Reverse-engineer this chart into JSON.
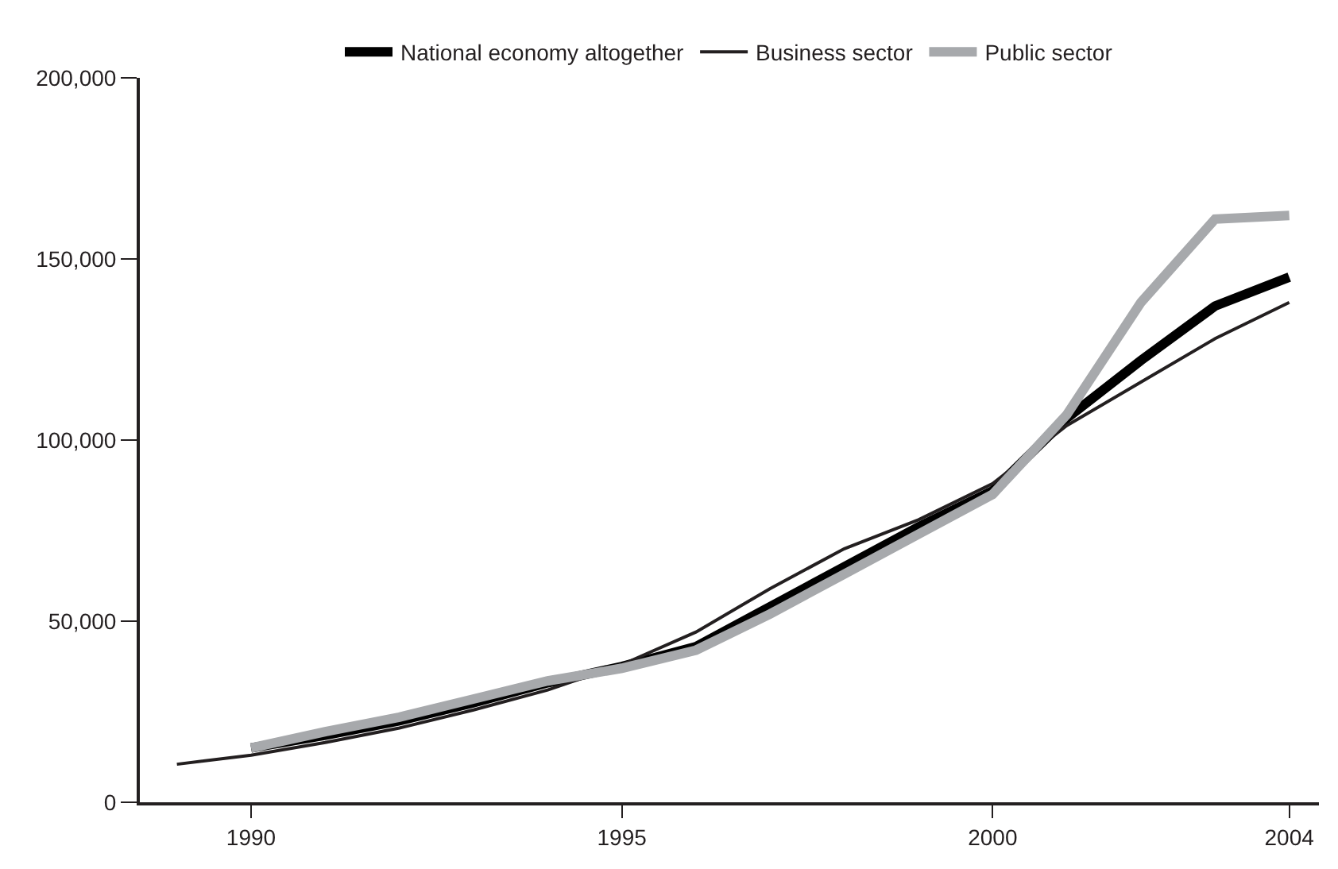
{
  "chart_data": {
    "type": "line",
    "x": [
      1989,
      1990,
      1991,
      1992,
      1993,
      1994,
      1995,
      1996,
      1997,
      1998,
      1999,
      2000,
      2001,
      2002,
      2003,
      2004
    ],
    "series": [
      {
        "name": "National economy altogether",
        "color": "#000000",
        "values": [
          null,
          15000,
          18500,
          22500,
          27500,
          33000,
          37500,
          43000,
          54000,
          65000,
          76000,
          86000,
          106000,
          122000,
          137000,
          145000
        ]
      },
      {
        "name": "Business sector",
        "color": "#231f20",
        "values": [
          10500,
          13000,
          16500,
          20500,
          25500,
          31000,
          38000,
          47000,
          59000,
          70000,
          78000,
          88000,
          104000,
          116000,
          128000,
          138000
        ]
      },
      {
        "name": "Public sector",
        "color": "#a7a9ac",
        "values": [
          null,
          15000,
          19500,
          23500,
          28500,
          33500,
          37000,
          42000,
          52000,
          63000,
          74000,
          85000,
          107000,
          138000,
          161000,
          162000
        ]
      }
    ],
    "xlim": [
      1988.5,
      2004.4
    ],
    "xticks": [
      1990,
      1995,
      2000,
      2004
    ],
    "ylim": [
      0,
      200000
    ],
    "yticks": [
      {
        "value": 0,
        "label": "0"
      },
      {
        "value": 50000,
        "label": "50,000"
      },
      {
        "value": 100000,
        "label": "100,000"
      },
      {
        "value": 150000,
        "label": "150,000"
      },
      {
        "value": 200000,
        "label": "200,000"
      }
    ],
    "legend": "top",
    "marker": "none"
  }
}
